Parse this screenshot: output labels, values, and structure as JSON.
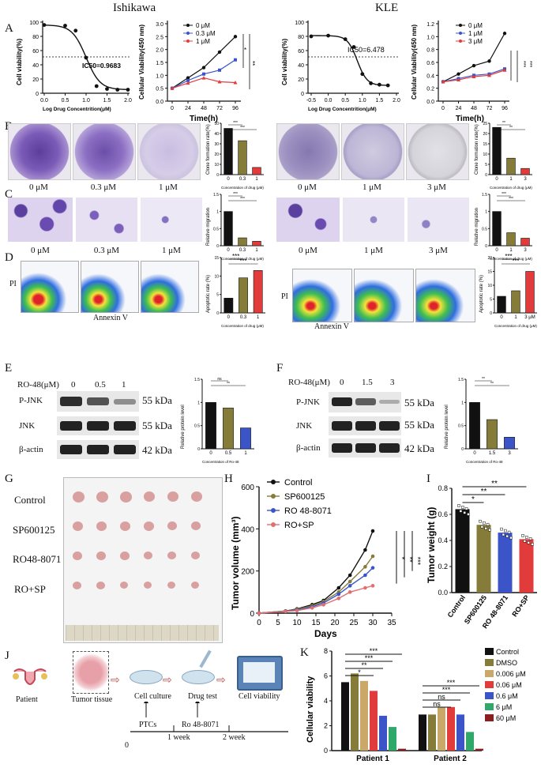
{
  "headers": {
    "left": "Ishikawa",
    "right": "KLE"
  },
  "panel_letters": [
    "A",
    "B",
    "C",
    "D",
    "E",
    "F",
    "G",
    "H",
    "I",
    "J",
    "K"
  ],
  "panelA": {
    "ish_ic50": {
      "ylabel": "Cell viability(%)",
      "xlabel": "Log Drug Concentrition(μM)",
      "ic50": "IC50=0.9683",
      "yticks": [
        "0",
        "20",
        "40",
        "60",
        "80",
        "100"
      ],
      "xticks": [
        "0.0",
        "0.5",
        "1.0",
        "1.5",
        "2.0"
      ]
    },
    "ish_time": {
      "ylabel": "Cellular Viability(450 nm)",
      "xlabel": "Time(h)",
      "legend": [
        "0 μM",
        "0.3 μM",
        "1 μM"
      ],
      "yticks": [
        "0.0",
        "0.5",
        "1.0",
        "1.5",
        "2.0",
        "2.5",
        "3.0"
      ],
      "xticks": [
        "0",
        "24",
        "48",
        "72",
        "96"
      ],
      "sig": [
        "*",
        "**"
      ]
    },
    "kle_ic50": {
      "ylabel": "Cell viability(%)",
      "xlabel": "Log Drug Concentrition(μM)",
      "ic50": "IC50=6.478",
      "yticks": [
        "0",
        "20",
        "40",
        "60",
        "80",
        "100"
      ],
      "xticks": [
        "-0.5",
        "0.0",
        "0.5",
        "1.0",
        "1.5",
        "2.0"
      ]
    },
    "kle_time": {
      "ylabel": "Cellular Viability(450 nm)",
      "xlabel": "Time(h)",
      "legend": [
        "0 μM",
        "1 μM",
        "3 μM"
      ],
      "yticks": [
        "0.0",
        "0.2",
        "0.4",
        "0.6",
        "0.8",
        "1.0",
        "1.2"
      ],
      "xticks": [
        "0",
        "24",
        "48",
        "72",
        "96"
      ],
      "sig": [
        "***",
        "***"
      ]
    }
  },
  "panelB": {
    "ish_caps": [
      "0 μM",
      "0.3 μM",
      "1 μM"
    ],
    "kle_caps": [
      "0 μM",
      "1 μM",
      "3 μM"
    ],
    "ish_ylabel": "Clone formation rate(%)",
    "kle_ylabel": "Clone formation rate(%)",
    "xlabel": "Concentration of drug (μM)"
  },
  "panelC": {
    "ish_caps": [
      "0 μM",
      "0.3 μM",
      "1 μM"
    ],
    "kle_caps": [
      "0 μM",
      "1 μM",
      "3 μM"
    ],
    "ylabel": "Relative migration",
    "xlabel": "Concentration of drug (μM)"
  },
  "panelD": {
    "pi": "PI",
    "annexin": "Annexin V",
    "ylabel": "Apoptotic rate (%)",
    "xlabel": "Concentration of drug (μM)",
    "kle_xlast": "3 μM"
  },
  "panelE": {
    "ro": "RO-48(μM)",
    "conc": [
      "0",
      "0.5",
      "1"
    ],
    "rows": [
      "P-JNK",
      "JNK",
      "β-actin"
    ],
    "kda": [
      "55 kDa",
      "55 kDa",
      "42 kDa"
    ],
    "ylabel": "Relative protein level",
    "xlabel": "Concentration of Ro-48",
    "sig": [
      "ns",
      "**"
    ]
  },
  "panelF": {
    "ro": "RO-48(μM)",
    "conc": [
      "0",
      "1.5",
      "3"
    ],
    "rows": [
      "P-JNK",
      "JNK",
      "β-actin"
    ],
    "kda": [
      "55 kDa",
      "55 kDa",
      "42 kDa"
    ],
    "ylabel": "Relative protein level",
    "xlabel": "Concentration of Ro-48",
    "sig": [
      "**",
      "**"
    ]
  },
  "panelG": {
    "rows": [
      "Control",
      "SP600125",
      "RO48-8071",
      "RO+SP"
    ]
  },
  "panelH": {
    "ylabel": "Tumor volume (mm³)",
    "xlabel": "Days",
    "legend": [
      "Control",
      "SP600125",
      "RO 48-8071",
      "RO+SP"
    ],
    "yticks": [
      "0",
      "200",
      "400",
      "600"
    ],
    "xticks": [
      "0",
      "5",
      "10",
      "15",
      "20",
      "25",
      "30",
      "35"
    ],
    "sig": [
      "*",
      "**",
      "***"
    ]
  },
  "panelI": {
    "ylabel": "Tumor weight (g)",
    "yticks": [
      "0.0",
      "0.2",
      "0.4",
      "0.6",
      "0.8"
    ],
    "cats": [
      "Control",
      "SP600125",
      "RO 48-8071",
      "RO+SP"
    ],
    "sig": [
      "*",
      "**",
      "**"
    ]
  },
  "panelJ": {
    "patient": "Patient",
    "tissue": "Tumor tissue",
    "culture": "Cell culture",
    "drug": "Drug test",
    "viab": "Cell viability",
    "ptcs": "PTCs",
    "ro": "Ro 48-8071",
    "t0": "0",
    "w1": "1 week",
    "w2": "2 week"
  },
  "panelK": {
    "ylabel": "Cellular viability",
    "yticks": [
      "0",
      "2",
      "4",
      "6",
      "8"
    ],
    "groups": [
      "Patient 1",
      "Patient 2"
    ],
    "legend": [
      "Control",
      "DMSO",
      "0.006 μM",
      "0.06 μM",
      "0.6 μM",
      "6 μM",
      "60 μM"
    ],
    "sig1": [
      "***",
      "***",
      "**",
      "*"
    ],
    "sig2": [
      "***",
      "***",
      "ns",
      "ns"
    ]
  },
  "colors": {
    "black": "#111111",
    "olive": "#857c3a",
    "red": "#e23b3b",
    "blue": "#3b55c8",
    "purple": "#6b4aa6",
    "darkred": "#8b1e1e",
    "green": "#2fa86a",
    "salmon": "#e07070"
  },
  "chart_data": [
    {
      "type": "line",
      "name": "Ishikawa IC50",
      "x": [
        0,
        0.5,
        0.75,
        1.0,
        1.25,
        1.5,
        1.75,
        2.0
      ],
      "values": [
        96,
        95,
        88,
        50,
        10,
        6,
        5,
        5
      ],
      "xlabel": "Log Drug Concentrition(μM)",
      "ylabel": "Cell viability(%)",
      "ylim": [
        0,
        100
      ]
    },
    {
      "type": "line",
      "name": "Ishikawa CCK8",
      "x": [
        0,
        24,
        48,
        72,
        96
      ],
      "series": [
        {
          "name": "0 μM",
          "values": [
            0.5,
            0.9,
            1.3,
            1.9,
            2.5
          ]
        },
        {
          "name": "0.3 μM",
          "values": [
            0.5,
            0.8,
            1.05,
            1.2,
            1.6
          ]
        },
        {
          "name": "1 μM",
          "values": [
            0.5,
            0.7,
            0.9,
            0.75,
            0.72
          ]
        }
      ],
      "ylim": [
        0,
        3
      ]
    },
    {
      "type": "line",
      "name": "KLE IC50",
      "x": [
        -0.5,
        0,
        0.5,
        0.75,
        1.0,
        1.25,
        1.5,
        1.75
      ],
      "values": [
        80,
        81,
        76,
        65,
        27,
        14,
        12,
        11
      ],
      "ylim": [
        0,
        100
      ]
    },
    {
      "type": "line",
      "name": "KLE CCK8",
      "x": [
        0,
        24,
        48,
        72,
        96
      ],
      "series": [
        {
          "name": "0 μM",
          "values": [
            0.3,
            0.42,
            0.55,
            0.62,
            1.05
          ]
        },
        {
          "name": "1 μM",
          "values": [
            0.3,
            0.35,
            0.4,
            0.42,
            0.5
          ]
        },
        {
          "name": "3 μM",
          "values": [
            0.3,
            0.33,
            0.38,
            0.4,
            0.48
          ]
        }
      ],
      "ylim": [
        0,
        1.2
      ]
    },
    {
      "type": "bar",
      "name": "Ishikawa clone",
      "categories": [
        "0",
        "0.3",
        "1"
      ],
      "values": [
        45,
        33,
        7
      ]
    },
    {
      "type": "bar",
      "name": "KLE clone",
      "categories": [
        "0",
        "1",
        "3"
      ],
      "values": [
        23,
        8,
        3
      ]
    },
    {
      "type": "bar",
      "name": "Ishikawa migration",
      "categories": [
        "0",
        "0.3",
        "1"
      ],
      "values": [
        1.0,
        0.23,
        0.13
      ]
    },
    {
      "type": "bar",
      "name": "KLE migration",
      "categories": [
        "0",
        "1",
        "3"
      ],
      "values": [
        1.0,
        0.38,
        0.22
      ]
    },
    {
      "type": "bar",
      "name": "Ishikawa apoptosis",
      "categories": [
        "0",
        "0.3",
        "1"
      ],
      "values": [
        4,
        9.5,
        11.5
      ]
    },
    {
      "type": "bar",
      "name": "KLE apoptosis",
      "categories": [
        "0",
        "1",
        "3 μM"
      ],
      "values": [
        6,
        8,
        15
      ]
    },
    {
      "type": "bar",
      "name": "E protein",
      "categories": [
        "0",
        "0.5",
        "1"
      ],
      "values": [
        1.0,
        0.88,
        0.45
      ]
    },
    {
      "type": "bar",
      "name": "F protein",
      "categories": [
        "0",
        "1.5",
        "3"
      ],
      "values": [
        1.0,
        0.63,
        0.25
      ]
    },
    {
      "type": "line",
      "name": "Tumor volume",
      "x": [
        0,
        7,
        10,
        14,
        17,
        21,
        24,
        28,
        30
      ],
      "series": [
        {
          "name": "Control",
          "values": [
            0,
            10,
            20,
            40,
            60,
            120,
            180,
            300,
            390
          ]
        },
        {
          "name": "SP600125",
          "values": [
            0,
            10,
            18,
            35,
            55,
            100,
            150,
            220,
            270
          ]
        },
        {
          "name": "RO 48-8071",
          "values": [
            0,
            9,
            15,
            30,
            48,
            90,
            130,
            180,
            215
          ]
        },
        {
          "name": "RO+SP",
          "values": [
            0,
            8,
            12,
            25,
            40,
            70,
            100,
            120,
            130
          ]
        }
      ],
      "ylim": [
        0,
        600
      ]
    },
    {
      "type": "bar",
      "name": "Tumor weight",
      "categories": [
        "Control",
        "SP600125",
        "RO 48-8071",
        "RO+SP"
      ],
      "values": [
        0.64,
        0.52,
        0.46,
        0.41
      ],
      "ylim": [
        0,
        0.8
      ]
    },
    {
      "type": "bar",
      "name": "Patient viability",
      "categories": [
        "Patient 1",
        "Patient 2"
      ],
      "series": [
        {
          "name": "Control",
          "values": [
            5.5,
            2.9
          ]
        },
        {
          "name": "DMSO",
          "values": [
            6.2,
            2.9
          ]
        },
        {
          "name": "0.006 μM",
          "values": [
            5.6,
            3.5
          ]
        },
        {
          "name": "0.06 μM",
          "values": [
            4.8,
            3.5
          ]
        },
        {
          "name": "0.6 μM",
          "values": [
            2.8,
            2.9
          ]
        },
        {
          "name": "6 μM",
          "values": [
            1.9,
            1.5
          ]
        },
        {
          "name": "60 μM",
          "values": [
            0.15,
            0.15
          ]
        }
      ],
      "ylim": [
        0,
        8
      ]
    }
  ]
}
